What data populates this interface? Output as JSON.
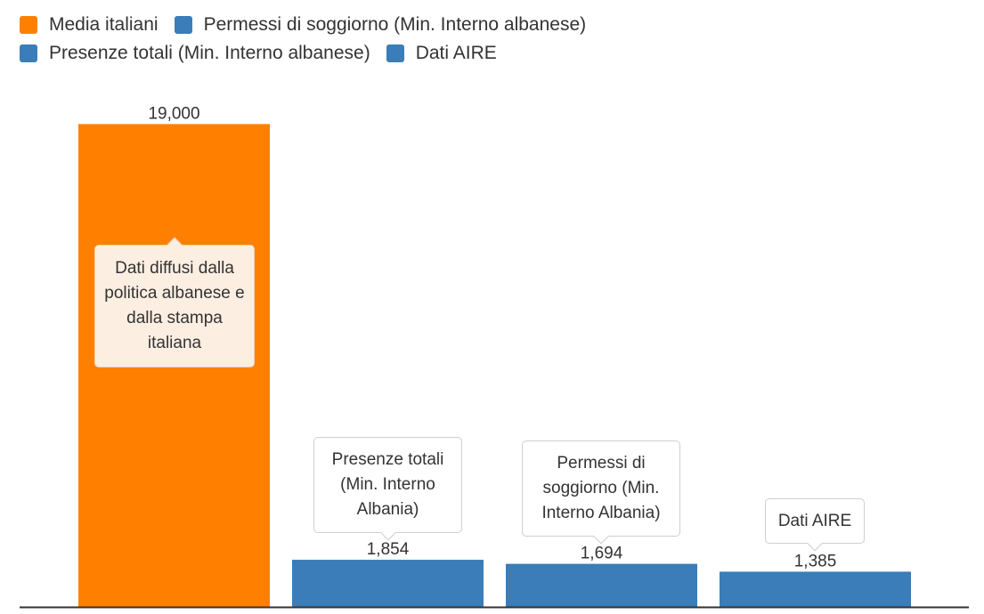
{
  "chart_data": {
    "type": "bar",
    "categories": [
      "Media italiani",
      "Presenze totali (Min. Interno albanese)",
      "Permessi di soggiorno (Min. Interno albanese)",
      "Dati AIRE"
    ],
    "values": [
      19000,
      1854,
      1694,
      1385
    ],
    "value_labels": [
      "19,000",
      "1,854",
      "1,694",
      "1,385"
    ],
    "colors": [
      "#ff8000",
      "#3a7db8",
      "#3a7db8",
      "#3a7db8"
    ],
    "ylim": [
      0,
      20100
    ],
    "grid": false,
    "legend_position": "top-left"
  },
  "legend": {
    "rows": [
      [
        {
          "label": "Media italiani",
          "color": "#ff8000"
        },
        {
          "label": "Permessi di soggiorno (Min. Interno albanese)",
          "color": "#3a7db8"
        }
      ],
      [
        {
          "label": "Presenze totali (Min. Interno albanese)",
          "color": "#3a7db8"
        },
        {
          "label": "Dati AIRE",
          "color": "#3a7db8"
        }
      ]
    ]
  },
  "annotations": [
    {
      "text": "Dati diffusi dalla politica albanese e dalla stampa italiana",
      "bar": 0,
      "style": "light"
    },
    {
      "text": "Presenze totali (Min. Interno Albania)",
      "bar": 1,
      "style": "plain"
    },
    {
      "text": "Permessi di soggiorno (Min. Interno Albania)",
      "bar": 2,
      "style": "plain"
    },
    {
      "text": "Dati AIRE",
      "bar": 3,
      "style": "plain"
    }
  ]
}
